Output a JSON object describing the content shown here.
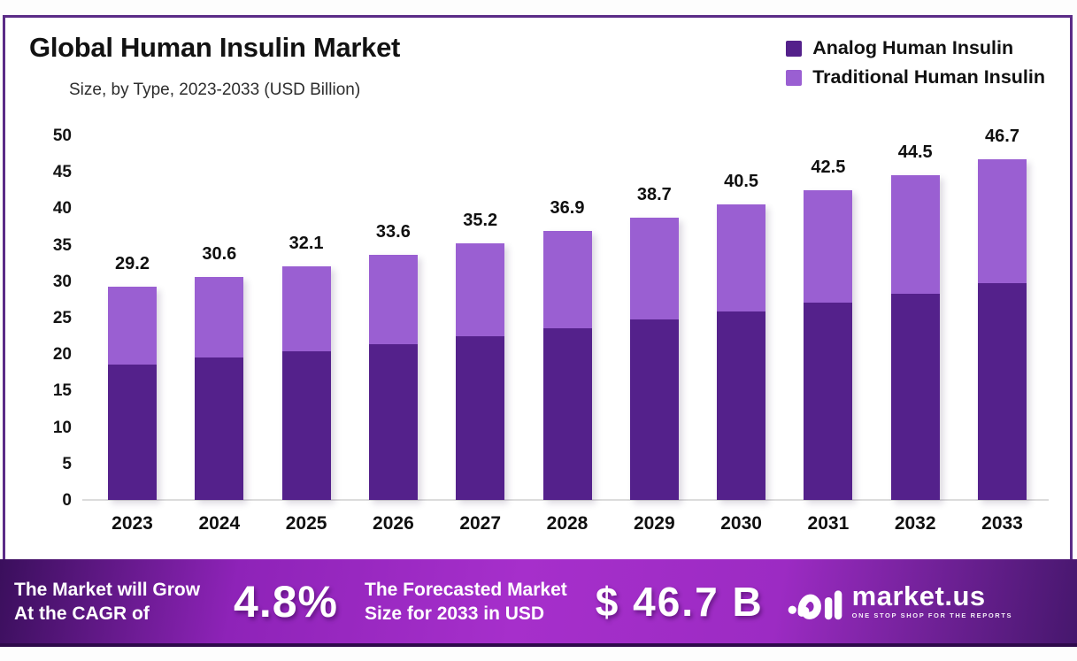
{
  "header": {
    "title": "Global Human Insulin Market",
    "subtitle": "Size, by Type, 2023-2033 (USD Billion)"
  },
  "legend": [
    {
      "label": "Analog Human Insulin",
      "color": "#54218b"
    },
    {
      "label": "Traditional Human Insulin",
      "color": "#9a5fd2"
    }
  ],
  "chart_data": {
    "type": "bar",
    "stacked": true,
    "title": "Global Human Insulin Market Size, by Type, 2023-2033 (USD Billion)",
    "categories": [
      "2023",
      "2024",
      "2025",
      "2026",
      "2027",
      "2028",
      "2029",
      "2030",
      "2031",
      "2032",
      "2033"
    ],
    "series": [
      {
        "name": "Analog Human Insulin",
        "color": "#54218b",
        "values": [
          18.6,
          19.5,
          20.4,
          21.4,
          22.4,
          23.5,
          24.7,
          25.8,
          27.1,
          28.3,
          29.7
        ]
      },
      {
        "name": "Traditional Human Insulin",
        "color": "#9a5fd2",
        "values": [
          10.6,
          11.1,
          11.7,
          12.2,
          12.8,
          13.4,
          14.0,
          14.7,
          15.4,
          16.2,
          17.0
        ]
      }
    ],
    "totals": [
      29.2,
      30.6,
      32.1,
      33.6,
      35.2,
      36.9,
      38.7,
      40.5,
      42.5,
      44.5,
      46.7
    ],
    "total_labels": [
      "29.2",
      "30.6",
      "32.1",
      "33.6",
      "35.2",
      "36.9",
      "38.7",
      "40.5",
      "42.5",
      "44.5",
      "46.7"
    ],
    "xlabel": "",
    "ylabel": "",
    "ylim": [
      0,
      50
    ],
    "ytick_step": 5,
    "yticks": [
      "0",
      "5",
      "10",
      "15",
      "20",
      "25",
      "30",
      "35",
      "40",
      "45",
      "50"
    ],
    "grid": false,
    "legend_position": "top-right"
  },
  "footer": {
    "cagr_line1": "The Market will Grow",
    "cagr_line2": "At the CAGR of",
    "cagr_value": "4.8%",
    "forecast_line1": "The Forecasted Market",
    "forecast_line2": "Size for 2033 in USD",
    "forecast_value": "$ 46.7 B",
    "brand_name": "market.us",
    "brand_tagline": "ONE STOP SHOP FOR THE REPORTS"
  },
  "colors": {
    "frame_border": "#5b2c87",
    "analog_bar": "#54218b",
    "traditional_bar": "#9a5fd2",
    "banner_left": "#3a0f5c",
    "banner_center": "#a62fcb",
    "banner_right": "#46176d",
    "text_dark": "#121212",
    "text_light": "#ffffff",
    "baseline": "#dcdcdc"
  }
}
